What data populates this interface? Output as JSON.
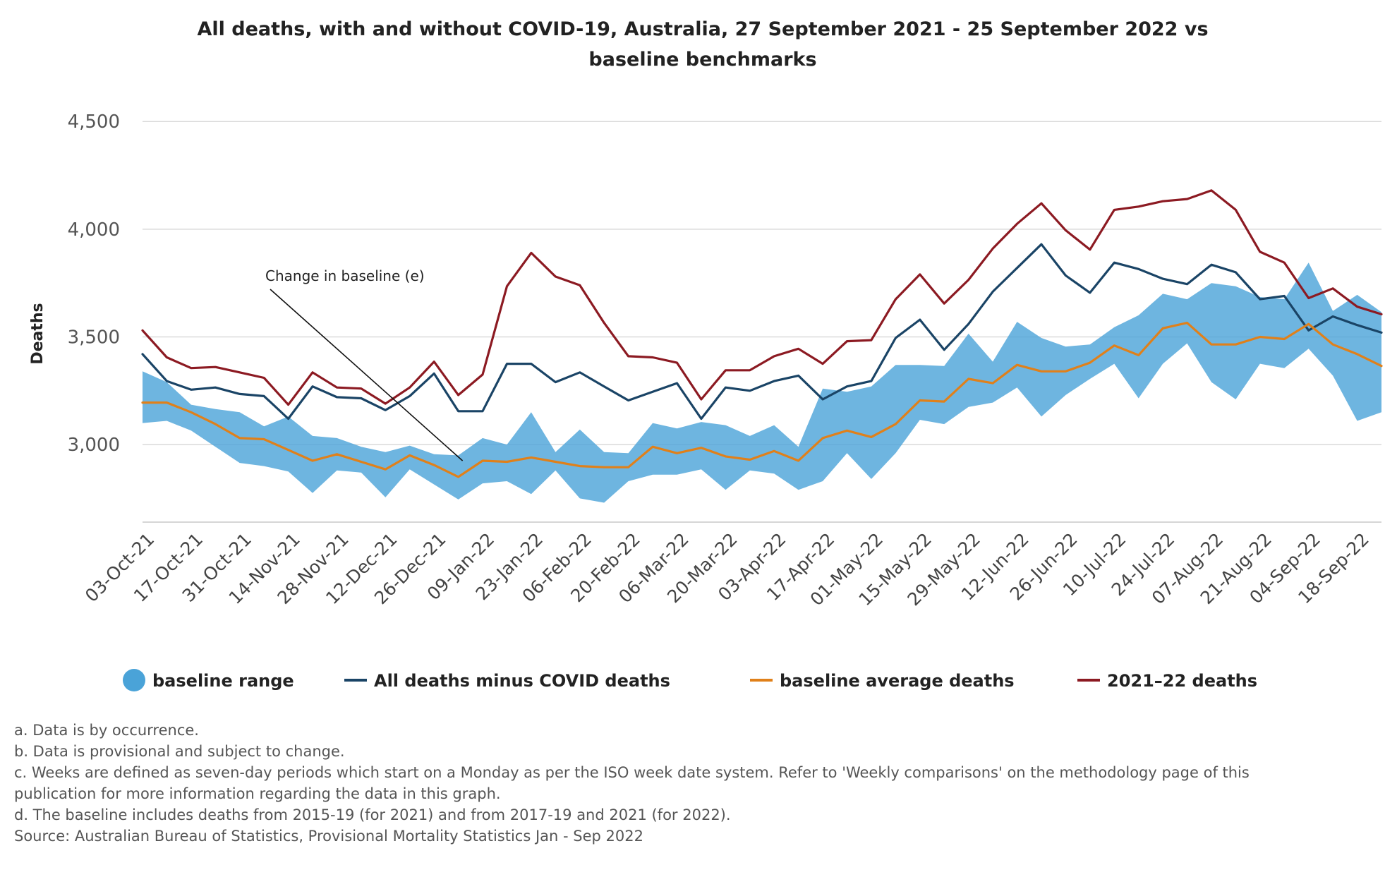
{
  "chart_data": {
    "type": "line",
    "title_lines": [
      "All deaths, with and without COVID-19, Australia, 27 September 2021 - 25 September 2022 vs",
      "baseline benchmarks"
    ],
    "ylabel": "Deaths",
    "ylim": [
      2640,
      4540
    ],
    "yticks": [
      3000,
      3500,
      4000,
      4500
    ],
    "ytick_labels": [
      "3,000",
      "3,500",
      "4,000",
      "4,500"
    ],
    "grid": true,
    "legend_position": "bottom",
    "x": [
      "03-Oct-21",
      "10-Oct-21",
      "17-Oct-21",
      "24-Oct-21",
      "31-Oct-21",
      "07-Nov-21",
      "14-Nov-21",
      "21-Nov-21",
      "28-Nov-21",
      "05-Dec-21",
      "12-Dec-21",
      "19-Dec-21",
      "26-Dec-21",
      "02-Jan-22",
      "09-Jan-22",
      "16-Jan-22",
      "23-Jan-22",
      "30-Jan-22",
      "06-Feb-22",
      "13-Feb-22",
      "20-Feb-22",
      "27-Feb-22",
      "06-Mar-22",
      "13-Mar-22",
      "20-Mar-22",
      "27-Mar-22",
      "03-Apr-22",
      "10-Apr-22",
      "17-Apr-22",
      "24-Apr-22",
      "01-May-22",
      "08-May-22",
      "15-May-22",
      "22-May-22",
      "29-May-22",
      "05-Jun-22",
      "12-Jun-22",
      "19-Jun-22",
      "26-Jun-22",
      "03-Jul-22",
      "10-Jul-22",
      "17-Jul-22",
      "24-Jul-22",
      "31-Jul-22",
      "07-Aug-22",
      "14-Aug-22",
      "21-Aug-22",
      "28-Aug-22",
      "04-Sep-22",
      "11-Sep-22",
      "18-Sep-22",
      "25-Sep-22"
    ],
    "x_tick_labels": [
      "03-Oct-21",
      "17-Oct-21",
      "31-Oct-21",
      "14-Nov-21",
      "28-Nov-21",
      "12-Dec-21",
      "26-Dec-21",
      "09-Jan-22",
      "23-Jan-22",
      "06-Feb-22",
      "20-Feb-22",
      "06-Mar-22",
      "20-Mar-22",
      "03-Apr-22",
      "17-Apr-22",
      "01-May-22",
      "15-May-22",
      "29-May-22",
      "12-Jun-22",
      "26-Jun-22",
      "10-Jul-22",
      "24-Jul-22",
      "07-Aug-22",
      "21-Aug-22",
      "04-Sep-22",
      "18-Sep-22"
    ],
    "baseline_range": {
      "name": "baseline range",
      "upper": [
        3340,
        3290,
        3185,
        3165,
        3150,
        3085,
        3130,
        3040,
        3030,
        2990,
        2965,
        2995,
        2955,
        2950,
        3030,
        3000,
        3150,
        2965,
        3070,
        2965,
        2960,
        3100,
        3075,
        3105,
        3090,
        3040,
        3090,
        2990,
        3260,
        3245,
        3270,
        3370,
        3370,
        3365,
        3515,
        3385,
        3570,
        3495,
        3455,
        3465,
        3545,
        3600,
        3700,
        3675,
        3750,
        3735,
        3685,
        3675,
        3845,
        3620,
        3695,
        3615
      ],
      "lower": [
        3100,
        3110,
        3065,
        2990,
        2915,
        2900,
        2875,
        2775,
        2880,
        2870,
        2755,
        2885,
        2815,
        2745,
        2820,
        2830,
        2770,
        2880,
        2750,
        2730,
        2830,
        2860,
        2860,
        2885,
        2790,
        2880,
        2865,
        2790,
        2830,
        2960,
        2840,
        2960,
        3115,
        3095,
        3175,
        3195,
        3265,
        3130,
        3230,
        3305,
        3375,
        3215,
        3375,
        3470,
        3290,
        3210,
        3375,
        3355,
        3445,
        3320,
        3110,
        3150
      ],
      "color": "#4aa3d8"
    },
    "series": [
      {
        "name": "All deaths minus COVID deaths",
        "color": "#1a4466",
        "values": [
          3420,
          3295,
          3255,
          3265,
          3235,
          3225,
          3120,
          3270,
          3220,
          3215,
          3160,
          3225,
          3330,
          3155,
          3155,
          3375,
          3375,
          3290,
          3335,
          3270,
          3205,
          3245,
          3285,
          3120,
          3265,
          3250,
          3295,
          3320,
          3210,
          3270,
          3295,
          3495,
          3580,
          3440,
          3560,
          3710,
          3820,
          3930,
          3785,
          3705,
          3845,
          3815,
          3770,
          3745,
          3835,
          3800,
          3675,
          3690,
          3530,
          3595,
          3555,
          3520
        ]
      },
      {
        "name": "baseline average deaths",
        "color": "#e0801a",
        "values": [
          3195,
          3195,
          3150,
          3095,
          3030,
          3025,
          2975,
          2925,
          2955,
          2920,
          2885,
          2950,
          2905,
          2850,
          2925,
          2920,
          2940,
          2920,
          2900,
          2895,
          2895,
          2990,
          2960,
          2985,
          2945,
          2930,
          2970,
          2925,
          3030,
          3065,
          3035,
          3095,
          3205,
          3200,
          3305,
          3285,
          3370,
          3340,
          3340,
          3380,
          3460,
          3415,
          3540,
          3565,
          3465,
          3465,
          3500,
          3490,
          3560,
          3465,
          3420,
          3365
        ]
      },
      {
        "name": "2021–22 deaths",
        "color": "#8c1a22",
        "values": [
          3530,
          3405,
          3355,
          3360,
          3335,
          3310,
          3185,
          3335,
          3265,
          3260,
          3190,
          3265,
          3385,
          3230,
          3325,
          3735,
          3890,
          3780,
          3740,
          3565,
          3410,
          3405,
          3380,
          3210,
          3345,
          3345,
          3410,
          3445,
          3375,
          3480,
          3485,
          3675,
          3790,
          3655,
          3765,
          3910,
          4025,
          4120,
          3995,
          3905,
          4090,
          4105,
          4130,
          4140,
          4180,
          4090,
          3895,
          3845,
          3680,
          3725,
          3640,
          3605
        ]
      }
    ],
    "annotation": {
      "text": "Change in baseline (e)",
      "pointer_x": "02-Jan-22",
      "pointer_y": 2925
    }
  },
  "legend": {
    "items": [
      {
        "label": "baseline range",
        "color": "#4aa3d8",
        "marker": "circle"
      },
      {
        "label": "All deaths minus COVID deaths",
        "color": "#1a4466",
        "marker": "line"
      },
      {
        "label": "baseline average deaths",
        "color": "#e0801a",
        "marker": "line"
      },
      {
        "label": "2021–22 deaths",
        "color": "#8c1a22",
        "marker": "line"
      }
    ]
  },
  "notes": {
    "a": "a. Data is by occurrence.",
    "b": "b. Data is provisional and subject to change.",
    "c1": "c. Weeks are defined as seven-day periods which start on a Monday as per the ISO week date system. Refer to 'Weekly comparisons' on the methodology page of this",
    "c2": "publication for more information regarding the data in this graph.",
    "d": "d. The baseline includes deaths from 2015-19 (for 2021) and from 2017-19 and 2021 (for 2022).",
    "source": "Source: Australian Bureau of Statistics, Provisional Mortality Statistics Jan - Sep 2022"
  }
}
